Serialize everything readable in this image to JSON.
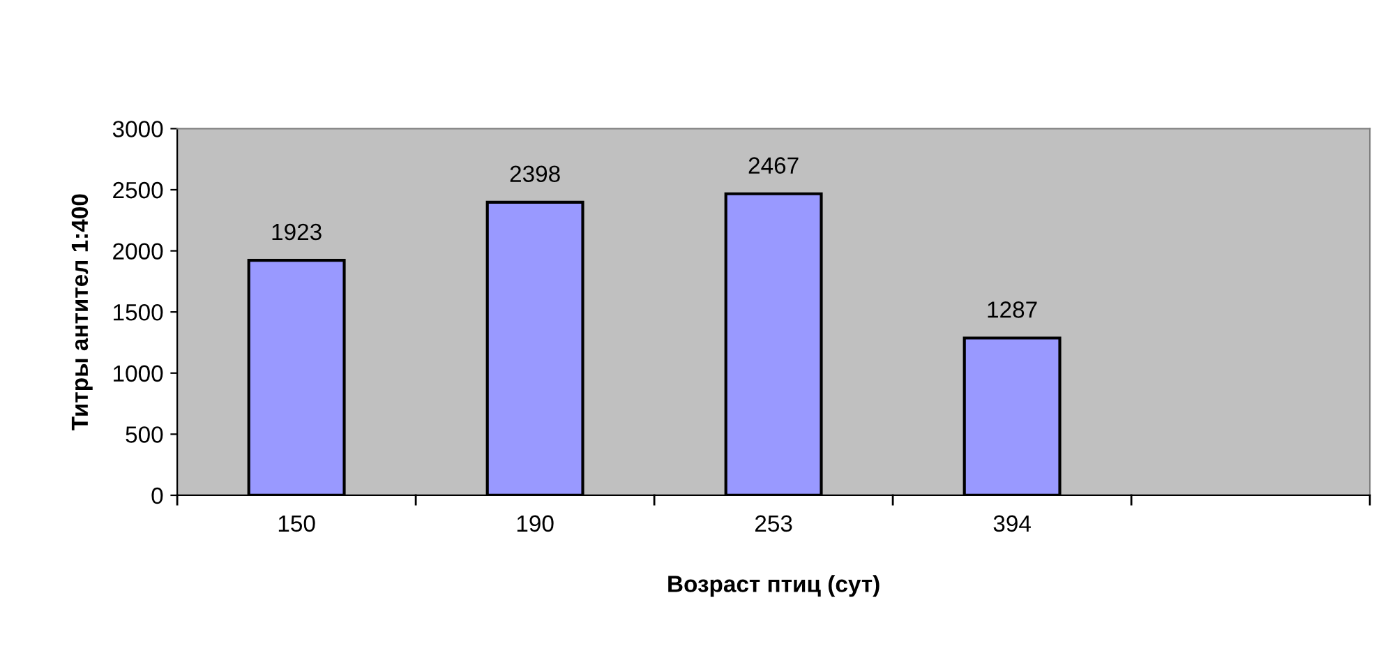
{
  "chart_data": {
    "type": "bar",
    "xlabel": "Возраст птиц (сут)",
    "ylabel": "Титры антител 1:400",
    "categories": [
      "150",
      "190",
      "253",
      "394",
      null
    ],
    "values": [
      1923,
      2398,
      2467,
      1287,
      null
    ],
    "color": "#9999ff",
    "ylim": [
      0,
      3000
    ],
    "yticks": [
      0,
      500,
      1000,
      1500,
      2000,
      2500,
      3000
    ],
    "grid": false,
    "data_labels": true
  }
}
